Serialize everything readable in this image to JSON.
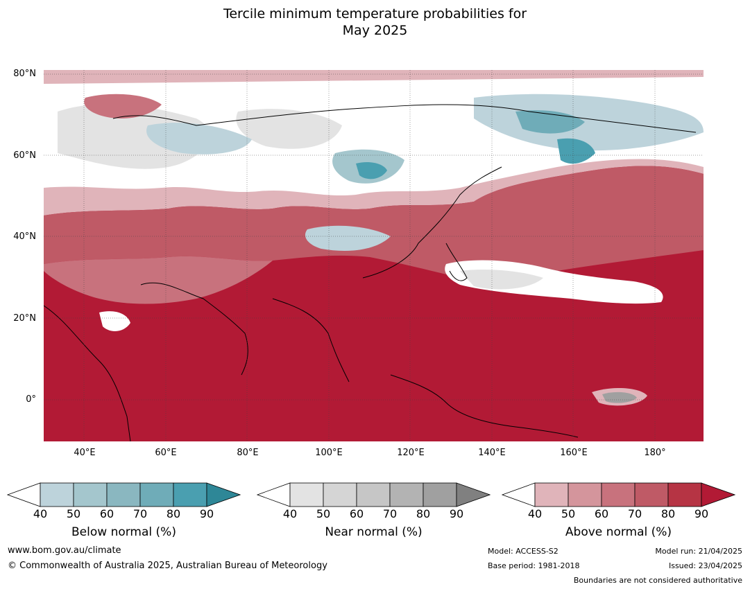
{
  "title_line1": "Tercile minimum temperature probabilities for",
  "title_line2": "May 2025",
  "lat_labels": [
    "80°N",
    "60°N",
    "40°N",
    "20°N",
    "0°"
  ],
  "lon_labels": [
    "40°E",
    "60°E",
    "80°E",
    "100°E",
    "120°E",
    "140°E",
    "160°E",
    "180°"
  ],
  "colorbars": [
    {
      "title": "Below normal (%)",
      "ticks": [
        "40",
        "50",
        "60",
        "70",
        "80",
        "90"
      ],
      "colors": [
        "#ffffff",
        "#bdd3db",
        "#a4c6cd",
        "#8ab7c0",
        "#6facb8",
        "#4a9fb0",
        "#2e8797"
      ]
    },
    {
      "title": "Near normal (%)",
      "ticks": [
        "40",
        "50",
        "60",
        "70",
        "80",
        "90"
      ],
      "colors": [
        "#ffffff",
        "#e3e3e3",
        "#d5d5d5",
        "#c6c6c6",
        "#b3b3b3",
        "#a0a0a0",
        "#808080"
      ]
    },
    {
      "title": "Above normal (%)",
      "ticks": [
        "40",
        "50",
        "60",
        "70",
        "80",
        "90"
      ],
      "colors": [
        "#ffffff",
        "#e0b4ba",
        "#d4959c",
        "#c8727d",
        "#bf5a66",
        "#b63444",
        "#b21a35"
      ]
    }
  ],
  "footer": {
    "website": "www.bom.gov.au/climate",
    "copyright": "© Commonwealth of Australia 2025, Australian Bureau of Meteorology",
    "model": "Model: ACCESS-S2",
    "base_period": "Base period: 1981-2018",
    "model_run": "Model run: 21/04/2025",
    "issued": "Issued: 23/04/2025",
    "disclaimer": "Boundaries are not considered authoritative"
  }
}
